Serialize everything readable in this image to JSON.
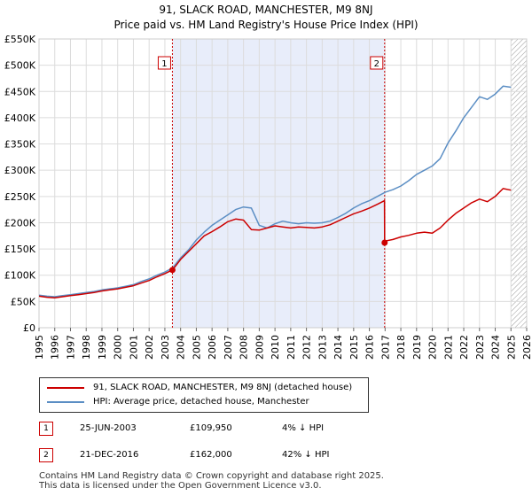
{
  "title": {
    "line1": "91, SLACK ROAD, MANCHESTER, M9 8NJ",
    "line2": "Price paid vs. HM Land Registry's House Price Index (HPI)"
  },
  "chart_data": {
    "type": "line",
    "title": "Price paid vs. HM Land Registry's House Price Index (HPI)",
    "xlabel": "",
    "ylabel": "",
    "xlim": [
      1995,
      2026
    ],
    "ylim": [
      0,
      550000
    ],
    "x_ticks": [
      "1995",
      "1996",
      "1997",
      "1998",
      "1999",
      "2000",
      "2001",
      "2002",
      "2003",
      "2004",
      "2005",
      "2006",
      "2007",
      "2008",
      "2009",
      "2010",
      "2011",
      "2012",
      "2013",
      "2014",
      "2015",
      "2016",
      "2017",
      "2018",
      "2019",
      "2020",
      "2021",
      "2022",
      "2023",
      "2024",
      "2025",
      "2026"
    ],
    "y_ticks": [
      {
        "value": 0,
        "label": "£0"
      },
      {
        "value": 50000,
        "label": "£50K"
      },
      {
        "value": 100000,
        "label": "£100K"
      },
      {
        "value": 150000,
        "label": "£150K"
      },
      {
        "value": 200000,
        "label": "£200K"
      },
      {
        "value": 250000,
        "label": "£250K"
      },
      {
        "value": 300000,
        "label": "£300K"
      },
      {
        "value": 350000,
        "label": "£350K"
      },
      {
        "value": 400000,
        "label": "£400K"
      },
      {
        "value": 450000,
        "label": "£450K"
      },
      {
        "value": 500000,
        "label": "£500K"
      },
      {
        "value": 550000,
        "label": "£550K"
      }
    ],
    "grid": true,
    "series": [
      {
        "name": "91, SLACK ROAD, MANCHESTER, M9 8NJ (detached house)",
        "color": "#cc0000",
        "x": [
          1995,
          1995.5,
          1996,
          1996.5,
          1997,
          1997.5,
          1998,
          1998.5,
          1999,
          1999.5,
          2000,
          2000.5,
          2001,
          2001.5,
          2002,
          2002.5,
          2003,
          2003.48,
          2003.8,
          2004,
          2004.5,
          2005,
          2005.5,
          2006,
          2006.5,
          2007,
          2007.5,
          2008,
          2008.5,
          2009,
          2009.5,
          2010,
          2010.5,
          2011,
          2011.5,
          2012,
          2012.5,
          2013,
          2013.5,
          2014,
          2014.5,
          2015,
          2015.5,
          2016,
          2016.5,
          2016.96,
          2016.97,
          2017,
          2017.5,
          2018,
          2018.5,
          2019,
          2019.5,
          2020,
          2020.5,
          2021,
          2021.5,
          2022,
          2022.5,
          2023,
          2023.5,
          2024,
          2024.5,
          2025
        ],
        "values": [
          60000,
          58000,
          57000,
          59000,
          61000,
          63000,
          65000,
          67000,
          70000,
          72000,
          74000,
          77000,
          80000,
          85000,
          90000,
          97000,
          103000,
          109950,
          122000,
          130000,
          145000,
          160000,
          175000,
          183000,
          192000,
          202000,
          207000,
          205000,
          187000,
          186000,
          190000,
          194000,
          192000,
          190000,
          192000,
          191000,
          190000,
          192000,
          196000,
          203000,
          210000,
          217000,
          222000,
          228000,
          235000,
          242000,
          162000,
          165000,
          168000,
          173000,
          176000,
          180000,
          182000,
          180000,
          190000,
          205000,
          218000,
          228000,
          238000,
          245000,
          240000,
          250000,
          265000,
          262000
        ]
      },
      {
        "name": "HPI: Average price, detached house, Manchester",
        "color": "#5b8ec4",
        "x": [
          1995,
          1995.5,
          1996,
          1996.5,
          1997,
          1997.5,
          1998,
          1998.5,
          1999,
          1999.5,
          2000,
          2000.5,
          2001,
          2001.5,
          2002,
          2002.5,
          2003,
          2003.5,
          2004,
          2004.5,
          2005,
          2005.5,
          2006,
          2006.5,
          2007,
          2007.5,
          2008,
          2008.5,
          2009,
          2009.5,
          2010,
          2010.5,
          2011,
          2011.5,
          2012,
          2012.5,
          2013,
          2013.5,
          2014,
          2014.5,
          2015,
          2015.5,
          2016,
          2016.5,
          2017,
          2017.5,
          2018,
          2018.5,
          2019,
          2019.5,
          2020,
          2020.5,
          2021,
          2021.5,
          2022,
          2022.5,
          2023,
          2023.5,
          2024,
          2024.5,
          2025
        ],
        "values": [
          62000,
          60000,
          59000,
          61000,
          63000,
          65000,
          67000,
          69000,
          72000,
          74000,
          76000,
          79000,
          82000,
          88000,
          93000,
          100000,
          106000,
          114000,
          133000,
          148000,
          167000,
          182000,
          195000,
          205000,
          215000,
          225000,
          230000,
          228000,
          195000,
          190000,
          198000,
          203000,
          200000,
          198000,
          200000,
          199000,
          200000,
          203000,
          210000,
          218000,
          228000,
          236000,
          242000,
          250000,
          258000,
          263000,
          270000,
          280000,
          292000,
          300000,
          308000,
          322000,
          352000,
          375000,
          400000,
          420000,
          440000,
          435000,
          445000,
          460000,
          458000
        ]
      }
    ],
    "transactions": [
      {
        "label": "1",
        "x": 2003.48,
        "value": 109950
      },
      {
        "label": "2",
        "x": 2016.97,
        "value": 162000
      }
    ],
    "shaded_region": [
      2003.48,
      2016.97
    ],
    "future_hatch_from": 2025.0
  },
  "legend": {
    "items": [
      {
        "label": "91, SLACK ROAD, MANCHESTER, M9 8NJ (detached house)",
        "color": "#cc0000"
      },
      {
        "label": "HPI: Average price, detached house, Manchester",
        "color": "#5b8ec4"
      }
    ]
  },
  "transactions": [
    {
      "num": "1",
      "date": "25-JUN-2003",
      "price": "£109,950",
      "hpi": "4% ↓ HPI"
    },
    {
      "num": "2",
      "date": "21-DEC-2016",
      "price": "£162,000",
      "hpi": "42% ↓ HPI"
    }
  ],
  "footer": {
    "line1": "Contains HM Land Registry data © Crown copyright and database right 2025.",
    "line2": "This data is licensed under the Open Government Licence v3.0."
  }
}
